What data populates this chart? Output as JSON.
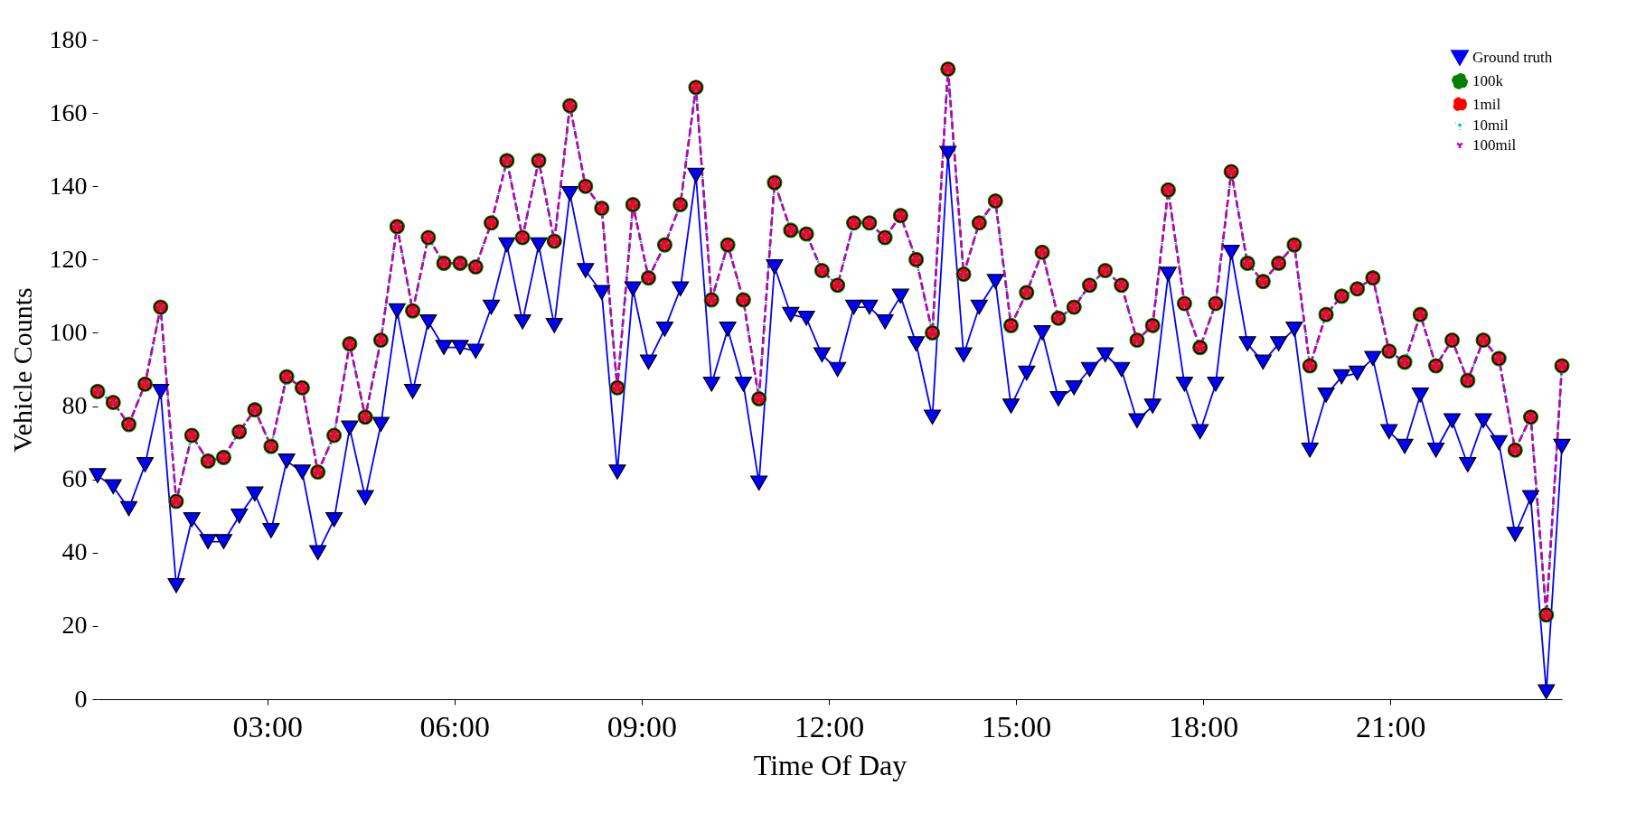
{
  "chart_data": {
    "type": "line",
    "xlabel": "Time Of Day",
    "ylabel": "Vehicle Counts",
    "x": [
      0.28,
      0.53,
      0.78,
      1.04,
      1.29,
      1.54,
      1.79,
      2.05,
      2.3,
      2.55,
      2.8,
      3.06,
      3.31,
      3.56,
      3.81,
      4.07,
      4.32,
      4.57,
      4.82,
      5.08,
      5.33,
      5.58,
      5.83,
      6.09,
      6.34,
      6.59,
      6.84,
      7.09,
      7.35,
      7.6,
      7.85,
      8.1,
      8.36,
      8.61,
      8.86,
      9.11,
      9.37,
      9.62,
      9.87,
      10.12,
      10.38,
      10.63,
      10.88,
      11.13,
      11.39,
      11.64,
      11.89,
      12.14,
      12.4,
      12.65,
      12.9,
      13.15,
      13.4,
      13.66,
      13.91,
      14.16,
      14.41,
      14.67,
      14.92,
      15.17,
      15.42,
      15.68,
      15.93,
      16.18,
      16.43,
      16.69,
      16.94,
      17.19,
      17.44,
      17.7,
      17.95,
      18.2,
      18.45,
      18.71,
      18.96,
      19.21,
      19.46,
      19.71,
      19.97,
      20.22,
      20.47,
      20.72,
      20.98,
      21.23,
      21.48,
      21.73,
      21.99,
      22.24,
      22.49,
      22.74,
      23.0,
      23.25,
      23.5,
      23.75
    ],
    "series": [
      {
        "name": "Ground truth",
        "color": "#0000ff",
        "marker": "triangle",
        "line_style": "solid",
        "values": [
          61,
          58,
          52,
          64,
          84,
          31,
          49,
          43,
          43,
          50,
          56,
          46,
          65,
          62,
          40,
          49,
          74,
          55,
          75,
          106,
          84,
          103,
          96,
          96,
          95,
          107,
          124,
          103,
          124,
          102,
          138,
          117,
          111,
          62,
          112,
          92,
          101,
          112,
          143,
          86,
          101,
          86,
          59,
          118,
          105,
          104,
          94,
          90,
          107,
          107,
          103,
          110,
          97,
          77,
          149,
          94,
          107,
          114,
          80,
          89,
          100,
          82,
          85,
          90,
          94,
          90,
          76,
          80,
          116,
          86,
          73,
          86,
          122,
          97,
          92,
          97,
          101,
          68,
          83,
          88,
          89,
          93,
          73,
          69,
          83,
          68,
          76,
          64,
          76,
          70,
          45,
          55,
          2,
          69
        ]
      },
      {
        "name": "100k",
        "color": "#008000",
        "marker": "circle",
        "line_style": "dashed",
        "values": [
          84,
          81,
          75,
          86,
          107,
          54,
          72,
          65,
          66,
          73,
          79,
          69,
          88,
          85,
          62,
          72,
          97,
          77,
          98,
          129,
          106,
          126,
          119,
          119,
          118,
          130,
          147,
          126,
          147,
          125,
          162,
          140,
          134,
          85,
          135,
          115,
          124,
          135,
          167,
          109,
          124,
          109,
          82,
          141,
          128,
          127,
          117,
          113,
          130,
          130,
          126,
          132,
          120,
          100,
          172,
          116,
          130,
          136,
          102,
          111,
          122,
          104,
          107,
          113,
          117,
          113,
          98,
          102,
          139,
          108,
          96,
          108,
          144,
          119,
          114,
          119,
          124,
          91,
          105,
          110,
          112,
          115,
          95,
          92,
          105,
          91,
          98,
          87,
          98,
          93,
          68,
          77,
          23,
          91
        ]
      },
      {
        "name": "1mil",
        "color": "#ff0000",
        "marker": "circle",
        "line_style": "dashed",
        "values": [
          84,
          81,
          75,
          86,
          107,
          54,
          72,
          65,
          66,
          73,
          79,
          69,
          88,
          85,
          62,
          72,
          97,
          77,
          98,
          129,
          106,
          126,
          119,
          119,
          118,
          130,
          147,
          126,
          147,
          125,
          162,
          140,
          134,
          85,
          135,
          115,
          124,
          135,
          167,
          109,
          124,
          109,
          82,
          141,
          128,
          127,
          117,
          113,
          130,
          130,
          126,
          132,
          120,
          100,
          172,
          116,
          130,
          136,
          102,
          111,
          122,
          104,
          107,
          113,
          117,
          113,
          98,
          102,
          139,
          108,
          96,
          108,
          144,
          119,
          114,
          119,
          124,
          91,
          105,
          110,
          112,
          115,
          95,
          92,
          105,
          91,
          98,
          87,
          98,
          93,
          68,
          77,
          23,
          91
        ]
      },
      {
        "name": "10mil",
        "color": "#00bfbf",
        "marker": "cross",
        "line_style": "dotted",
        "values": [
          84,
          81,
          75,
          86,
          107,
          54,
          72,
          65,
          66,
          73,
          79,
          69,
          88,
          85,
          62,
          72,
          97,
          77,
          98,
          129,
          106,
          126,
          119,
          119,
          118,
          130,
          147,
          126,
          147,
          125,
          162,
          140,
          134,
          85,
          135,
          115,
          124,
          135,
          167,
          109,
          124,
          109,
          82,
          141,
          128,
          127,
          117,
          113,
          130,
          130,
          126,
          132,
          120,
          100,
          172,
          116,
          130,
          136,
          102,
          111,
          122,
          104,
          107,
          113,
          117,
          113,
          98,
          102,
          139,
          108,
          96,
          108,
          144,
          119,
          114,
          119,
          124,
          91,
          105,
          110,
          112,
          115,
          95,
          92,
          105,
          91,
          98,
          87,
          98,
          93,
          68,
          77,
          23,
          91
        ]
      },
      {
        "name": "100mil",
        "color": "#bf00bf",
        "marker": "cross",
        "line_style": "dashed",
        "values": [
          84,
          81,
          75,
          86,
          107,
          54,
          72,
          65,
          66,
          73,
          79,
          69,
          88,
          85,
          62,
          72,
          97,
          77,
          98,
          129,
          106,
          126,
          119,
          119,
          118,
          130,
          147,
          126,
          147,
          125,
          162,
          140,
          134,
          85,
          135,
          115,
          124,
          135,
          167,
          109,
          124,
          109,
          82,
          141,
          128,
          127,
          117,
          113,
          130,
          130,
          126,
          132,
          120,
          100,
          172,
          116,
          130,
          136,
          102,
          111,
          122,
          104,
          107,
          113,
          117,
          113,
          98,
          102,
          139,
          108,
          96,
          108,
          144,
          119,
          114,
          119,
          124,
          91,
          105,
          110,
          112,
          115,
          95,
          92,
          105,
          91,
          98,
          87,
          98,
          93,
          68,
          77,
          23,
          91
        ]
      }
    ],
    "xlim": [
      0.28,
      23.75
    ],
    "xticks": [
      {
        "value": 3,
        "label": "03:00"
      },
      {
        "value": 6,
        "label": "06:00"
      },
      {
        "value": 9,
        "label": "09:00"
      },
      {
        "value": 12,
        "label": "12:00"
      },
      {
        "value": 15,
        "label": "15:00"
      },
      {
        "value": 18,
        "label": "18:00"
      },
      {
        "value": 21,
        "label": "21:00"
      }
    ],
    "ylim": [
      0,
      180
    ],
    "yticks": [
      0,
      20,
      40,
      60,
      80,
      100,
      120,
      140,
      160,
      180
    ],
    "grid": false,
    "legend": "top right"
  }
}
